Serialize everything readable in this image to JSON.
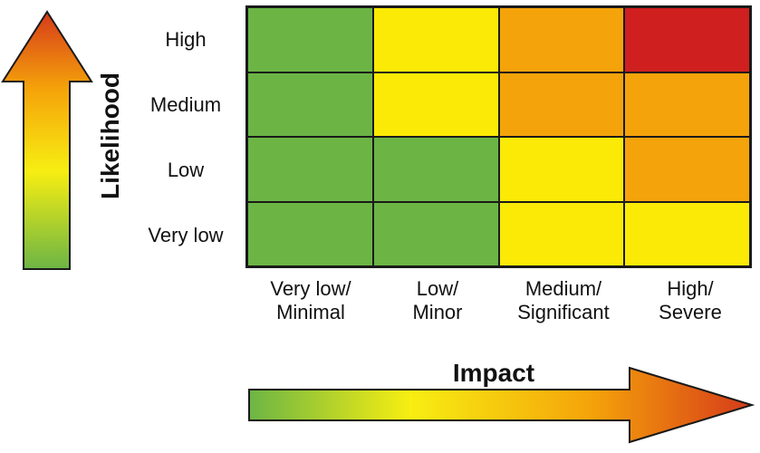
{
  "axes": {
    "y_title": "Likelihood",
    "x_title": "Impact",
    "rows": [
      "High",
      "Medium",
      "Low",
      "Very low"
    ],
    "columns": [
      {
        "line1": "Very low/",
        "line2": "Minimal"
      },
      {
        "line1": "Low/",
        "line2": "Minor"
      },
      {
        "line1": "Medium/",
        "line2": "Significant"
      },
      {
        "line1": "High/",
        "line2": "Severe"
      }
    ]
  },
  "colors": {
    "green": "#6cb545",
    "yellow": "#fbea05",
    "orange": "#f5a30a",
    "red": "#d01f1f"
  },
  "matrix": [
    [
      "green",
      "yellow",
      "orange",
      "red"
    ],
    [
      "green",
      "yellow",
      "orange",
      "orange"
    ],
    [
      "green",
      "green",
      "yellow",
      "orange"
    ],
    [
      "green",
      "green",
      "yellow",
      "yellow"
    ]
  ]
}
